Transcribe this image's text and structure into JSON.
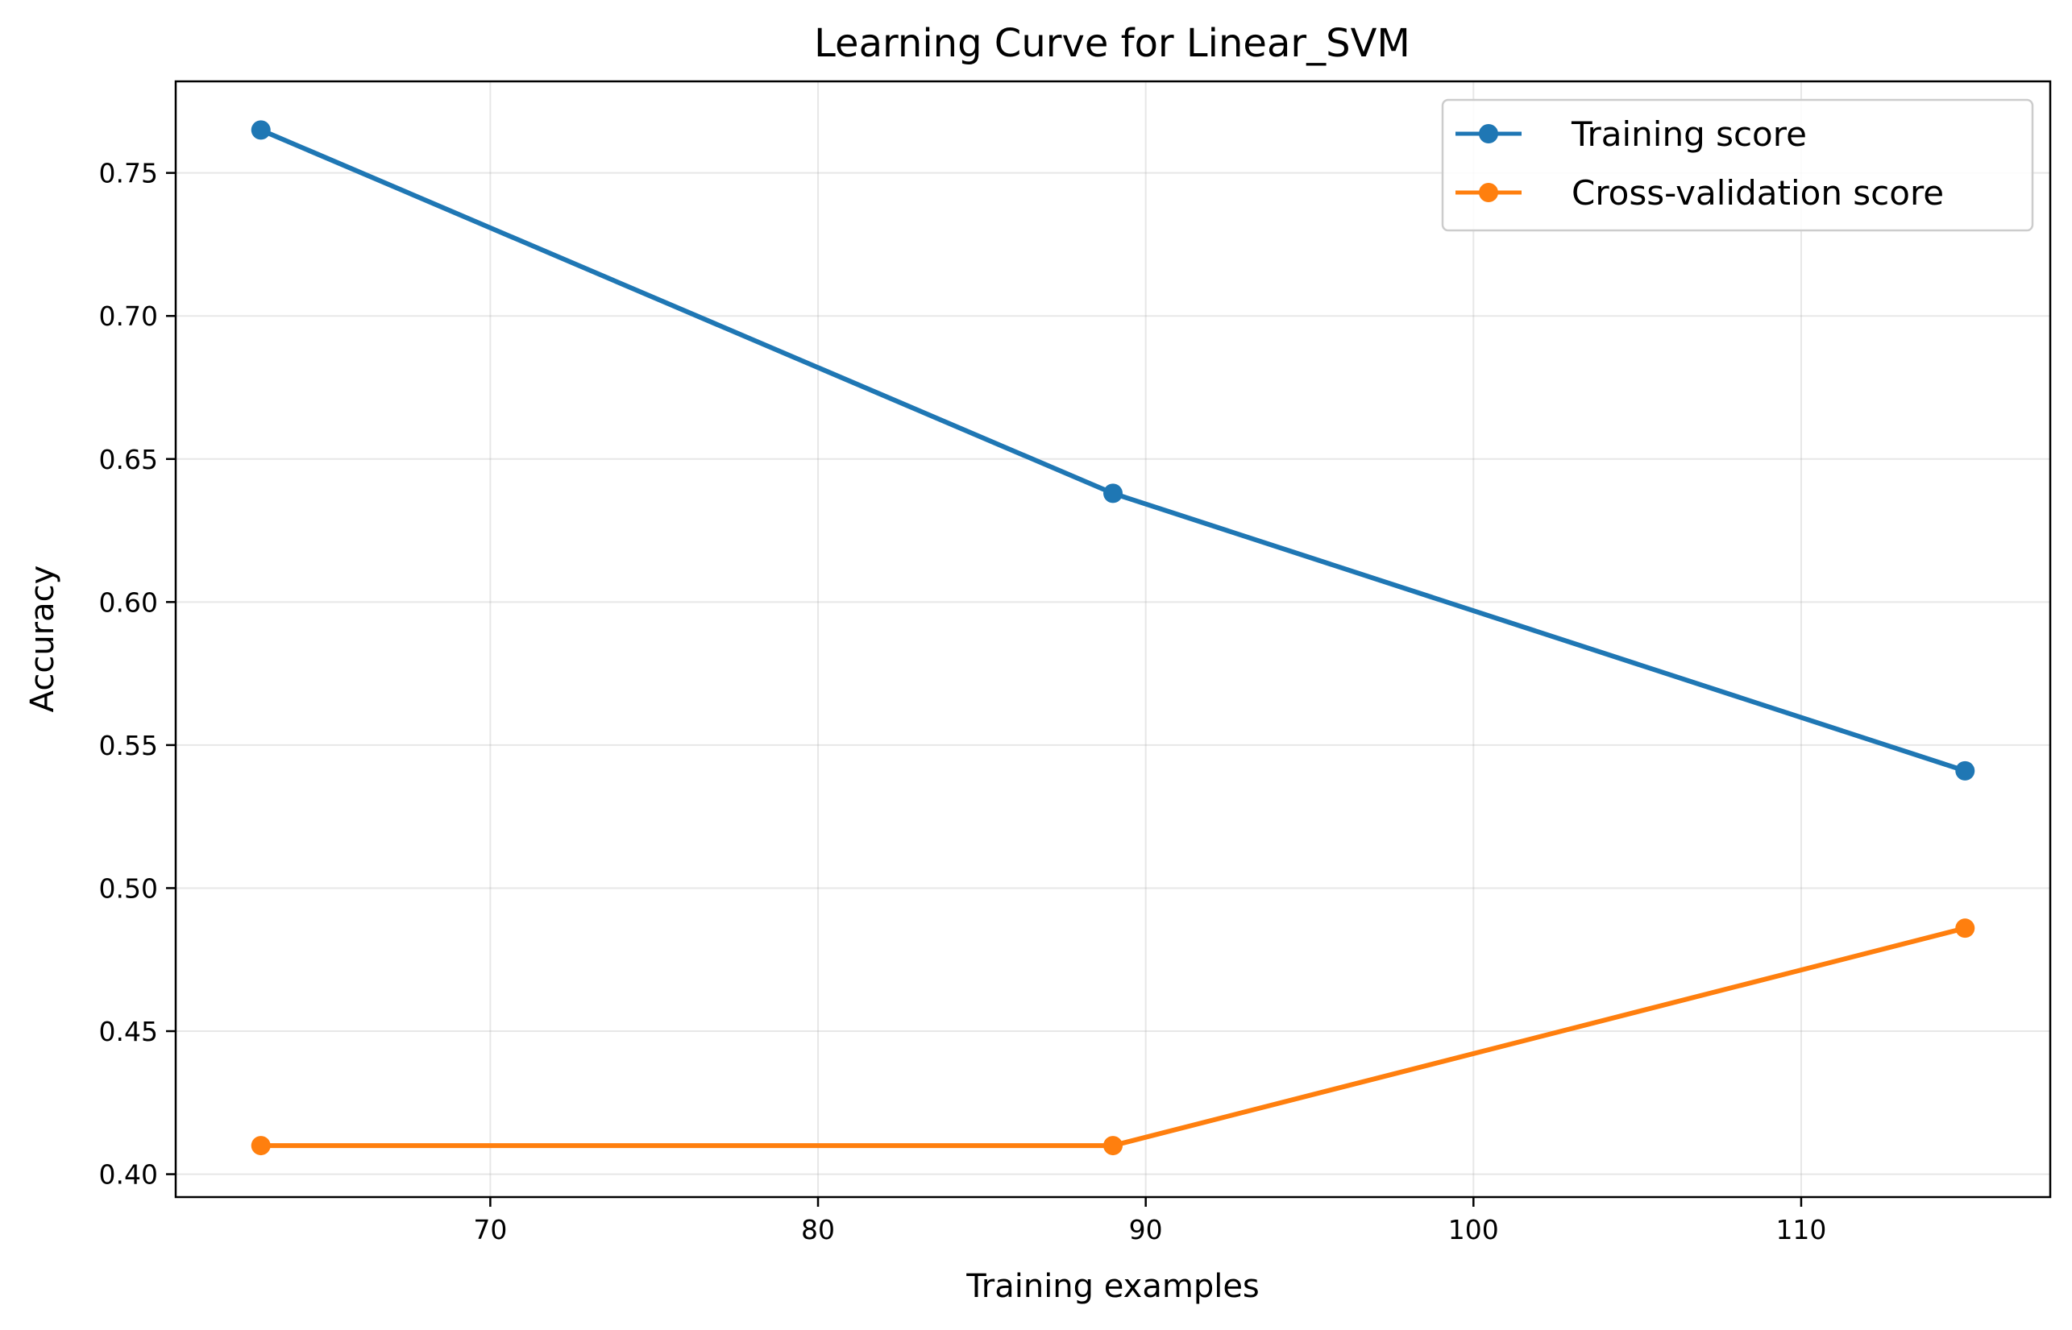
{
  "chart_data": {
    "type": "line",
    "title": "Learning Curve for Linear_SVM",
    "xlabel": "Training examples",
    "ylabel": "Accuracy",
    "xlim": [
      60.4,
      117.6
    ],
    "ylim": [
      0.392,
      0.782
    ],
    "xticks": [
      70,
      80,
      90,
      100,
      110
    ],
    "xtick_labels": [
      "70",
      "80",
      "90",
      "100",
      "110"
    ],
    "yticks": [
      0.4,
      0.45,
      0.5,
      0.55,
      0.6,
      0.65,
      0.7,
      0.75
    ],
    "ytick_labels": [
      "0.40",
      "0.45",
      "0.50",
      "0.55",
      "0.60",
      "0.65",
      "0.70",
      "0.75"
    ],
    "grid": true,
    "legend_position": "top-right",
    "series": [
      {
        "name": "Training score",
        "color": "#1f77b4",
        "marker": "circle",
        "x": [
          63,
          89,
          115
        ],
        "y": [
          0.765,
          0.638,
          0.541
        ]
      },
      {
        "name": "Cross-validation score",
        "color": "#ff7f0e",
        "marker": "circle",
        "x": [
          63,
          89,
          115
        ],
        "y": [
          0.41,
          0.41,
          0.486
        ]
      }
    ]
  }
}
